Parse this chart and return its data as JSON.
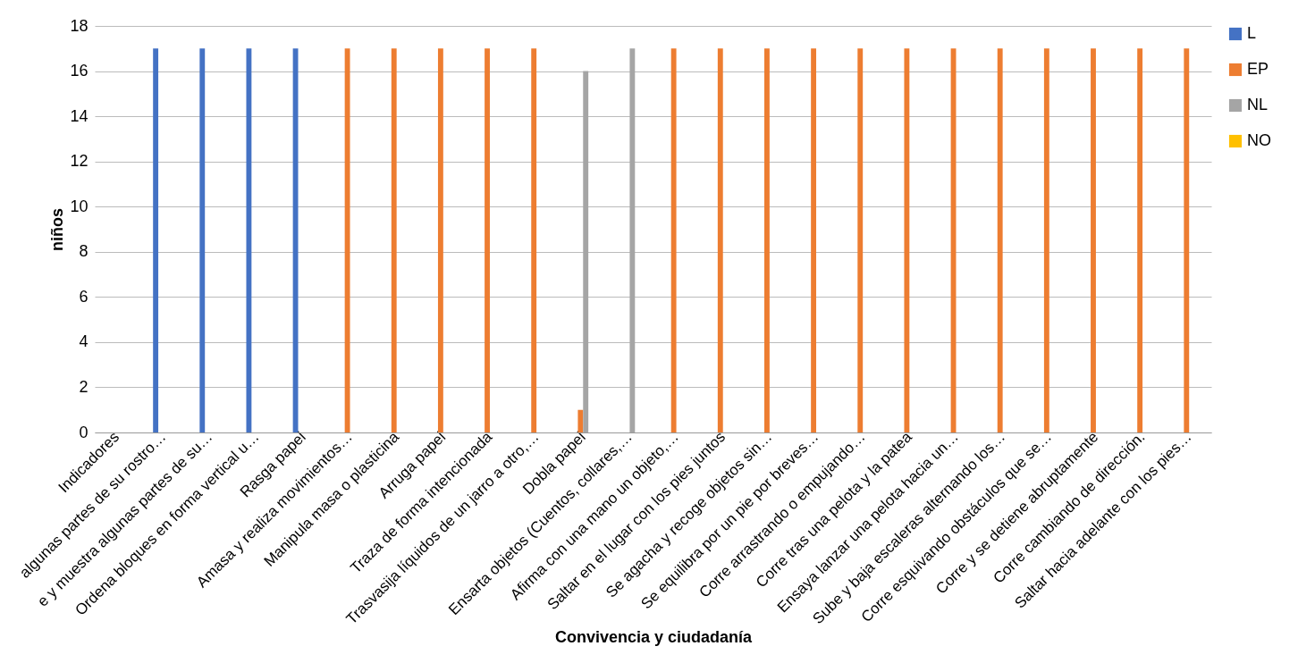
{
  "chart_data": {
    "type": "bar",
    "xlabel": "Convivencia y ciudadanía",
    "ylabel": "niños",
    "categories": [
      "Indicadores",
      "algunas partes de su rostro…",
      "e y muestra algunas partes de su…",
      "Ordena bloques en forma vertical u…",
      "Rasga papel",
      "Amasa y realiza movimientos…",
      "Manipula masa o plasticina",
      "Arruga papel",
      "Traza de forma intencionada",
      "Trasvasija líquidos de un jarro a otro,…",
      "Dobla papel",
      "Ensarta objetos (Cuentos, collares,…",
      "Afirma con una mano un objeto,…",
      "Saltar en el lugar con los pies juntos",
      "Se agacha y recoge objetos sin…",
      "Se equilibra por un pie por breves…",
      "Corre arrastrando o empujando…",
      "Corre tras una pelota y la patea",
      "Ensaya lanzar una pelota hacia un…",
      "Sube y baja escaleras alternando los…",
      "Corre esquivando obstáculos que se…",
      "Corre y se detiene abruptamente",
      "Corre cambiando de dirección.",
      "Saltar hacia adelante con los pies…"
    ],
    "series": [
      {
        "name": "L",
        "color": "#4472c4",
        "values": [
          null,
          17,
          17,
          17,
          17,
          null,
          null,
          null,
          null,
          null,
          null,
          null,
          null,
          null,
          null,
          null,
          null,
          null,
          null,
          null,
          null,
          null,
          null,
          null
        ]
      },
      {
        "name": "EP",
        "color": "#ed7d31",
        "values": [
          null,
          null,
          null,
          null,
          null,
          17,
          17,
          17,
          17,
          17,
          1,
          null,
          17,
          17,
          17,
          17,
          17,
          17,
          17,
          17,
          17,
          17,
          17,
          17
        ]
      },
      {
        "name": "NL",
        "color": "#a5a5a5",
        "values": [
          null,
          null,
          null,
          null,
          null,
          null,
          null,
          null,
          null,
          null,
          16,
          17,
          null,
          null,
          null,
          null,
          null,
          null,
          null,
          null,
          null,
          null,
          null,
          null
        ]
      },
      {
        "name": "NO",
        "color": "#ffc000",
        "values": [
          null,
          null,
          null,
          null,
          null,
          null,
          null,
          null,
          null,
          null,
          null,
          null,
          null,
          null,
          null,
          null,
          null,
          null,
          null,
          null,
          null,
          null,
          null,
          null
        ]
      }
    ],
    "ylim": [
      0,
      18
    ],
    "yticks": [
      0,
      2,
      4,
      6,
      8,
      10,
      12,
      14,
      16,
      18
    ],
    "grid": "y",
    "legend": "right"
  }
}
